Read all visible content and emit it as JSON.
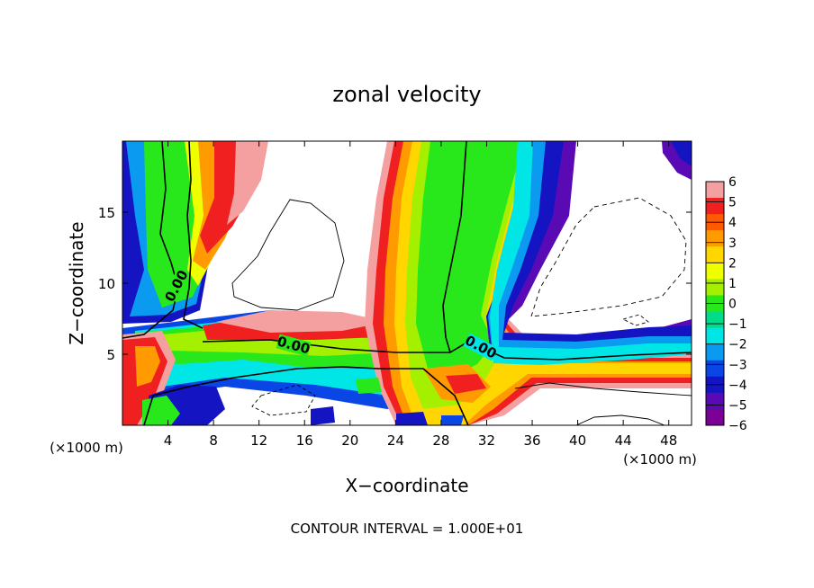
{
  "chart_data": {
    "type": "heatmap",
    "title": "zonal velocity",
    "xlabel": "X−coordinate",
    "ylabel": "Z−coordinate",
    "x_unit_left": "(×1000 m)",
    "x_unit_right": "(×1000 m)",
    "footer": "CONTOUR INTERVAL = 1.000E+01",
    "xlim": [
      0,
      50
    ],
    "ylim": [
      0,
      20
    ],
    "x_ticks": [
      4,
      8,
      12,
      16,
      20,
      24,
      28,
      32,
      36,
      40,
      44,
      48
    ],
    "y_ticks": [
      5,
      10,
      15
    ],
    "colorbar_ticks": [
      6,
      5,
      4,
      3,
      2,
      1,
      0,
      -1,
      -2,
      -3,
      -4,
      -5,
      -6
    ],
    "colorbar_labels": [
      "6",
      "5",
      "4",
      "3",
      "2",
      "1",
      "0",
      "−1",
      "−2",
      "−3",
      "−4",
      "−5",
      "−6"
    ],
    "colorbar_colors": [
      "#f5a0a0",
      "#f02020",
      "#ff5a00",
      "#ff9b00",
      "#ffd600",
      "#f0ff00",
      "#a5f000",
      "#28e81c",
      "#00dc8c",
      "#00e6e6",
      "#0a9bf0",
      "#0a46e6",
      "#1414c3",
      "#5a0ab4",
      "#7d0096"
    ],
    "contour_labels": [
      {
        "text": "0.00",
        "x": 5.8,
        "y": 8.7
      },
      {
        "text": "0.00",
        "x": 15.2,
        "y": 5.3
      },
      {
        "text": "0.00",
        "x": 31.2,
        "y": 5.3
      }
    ],
    "grid": false
  }
}
